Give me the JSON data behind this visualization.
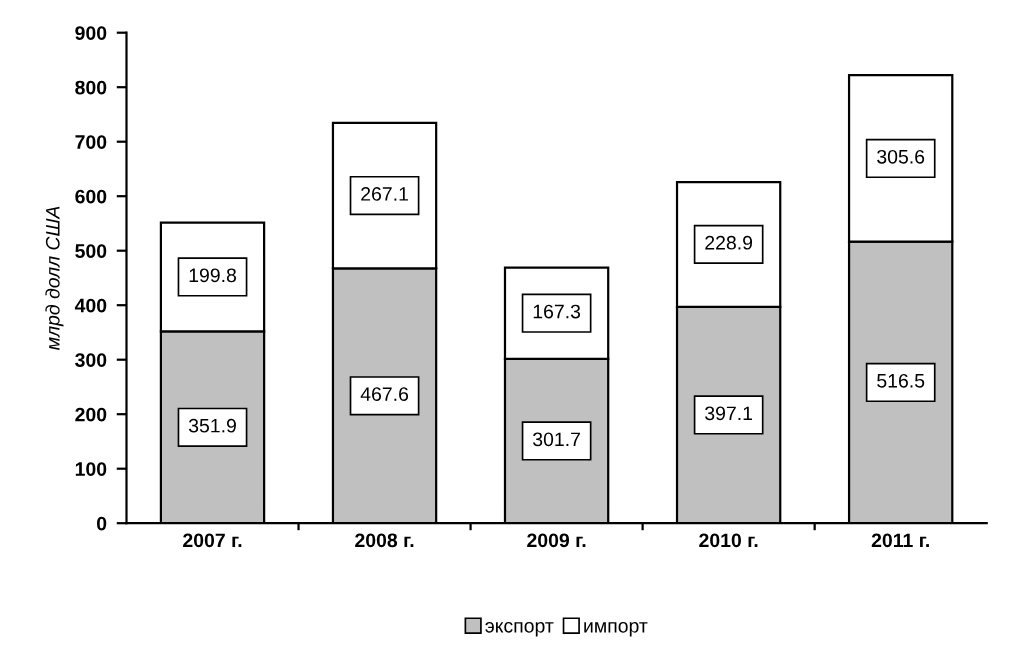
{
  "chart_data": {
    "type": "bar",
    "stacked": true,
    "ylabel": "млрд долл США",
    "categories": [
      "2007 г.",
      "2008 г.",
      "2009 г.",
      "2010 г.",
      "2011 г."
    ],
    "series": [
      {
        "name": "экспорт",
        "color": "#c0c0c0",
        "values": [
          351.9,
          467.6,
          301.7,
          397.1,
          516.5
        ]
      },
      {
        "name": "импорт",
        "color": "#ffffff",
        "values": [
          199.8,
          267.1,
          167.3,
          228.9,
          305.6
        ]
      }
    ],
    "ylim": [
      0,
      900
    ],
    "yticks": [
      0,
      100,
      200,
      300,
      400,
      500,
      600,
      700,
      800,
      900
    ],
    "grid": false,
    "legend": "bottom",
    "data_labels": true
  }
}
